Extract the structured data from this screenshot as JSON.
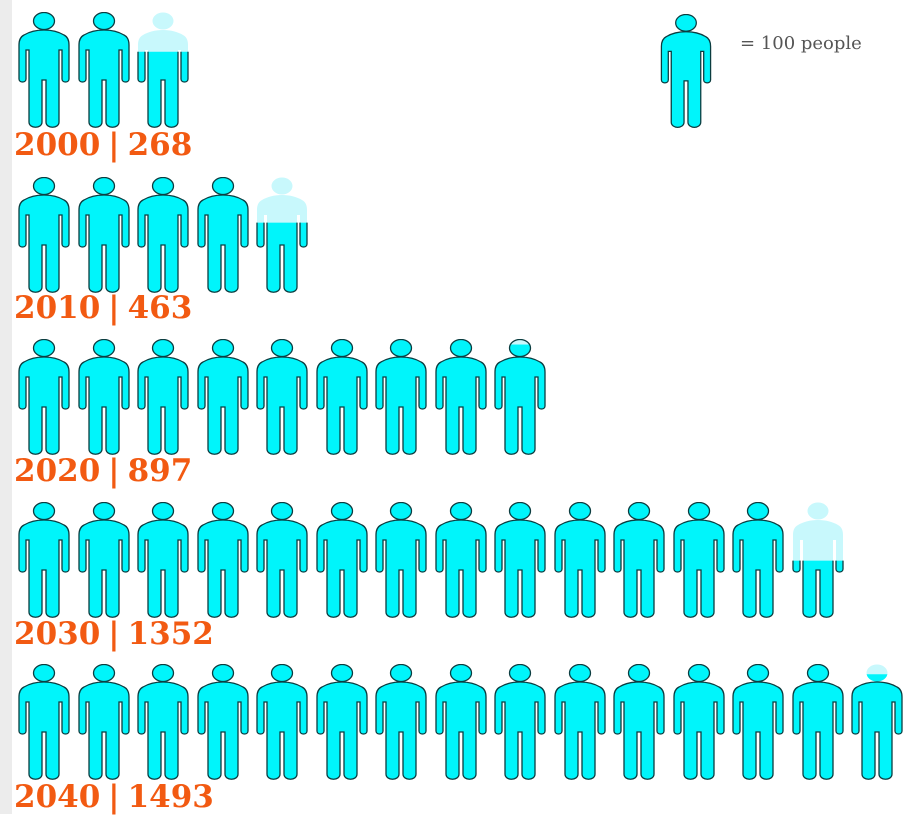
{
  "chart_data": {
    "type": "pictogram",
    "unit_value": 100,
    "legend_text": "= 100 people",
    "rows": [
      {
        "year": "2000",
        "value": 268
      },
      {
        "year": "2010",
        "value": 463
      },
      {
        "year": "2020",
        "value": 897
      },
      {
        "year": "2030",
        "value": 1352
      },
      {
        "year": "2040",
        "value": 1493
      }
    ]
  },
  "colors": {
    "icon_fill": "#00f5fb",
    "icon_faded": "#c8f8fc",
    "icon_outline": "#0b3d40",
    "label": "#f25a12",
    "legend_text": "#555555"
  },
  "icon": "person-icon"
}
